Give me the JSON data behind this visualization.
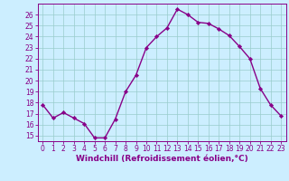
{
  "x": [
    0,
    1,
    2,
    3,
    4,
    5,
    6,
    7,
    8,
    9,
    10,
    11,
    12,
    13,
    14,
    15,
    16,
    17,
    18,
    19,
    20,
    21,
    22,
    23
  ],
  "y": [
    17.8,
    16.6,
    17.1,
    16.6,
    16.1,
    14.8,
    14.8,
    16.5,
    19.0,
    20.5,
    23.0,
    24.0,
    24.8,
    26.5,
    26.0,
    25.3,
    25.2,
    24.7,
    24.1,
    23.1,
    22.0,
    19.3,
    17.8,
    16.8
  ],
  "line_color": "#880088",
  "marker": "D",
  "marker_size": 2.2,
  "bg_color": "#cceeff",
  "grid_color": "#99cccc",
  "xlabel": "Windchill (Refroidissement éolien,°C)",
  "xlabel_color": "#880088",
  "ylim": [
    14.5,
    27.0
  ],
  "xlim": [
    -0.5,
    23.5
  ],
  "yticks": [
    15,
    16,
    17,
    18,
    19,
    20,
    21,
    22,
    23,
    24,
    25,
    26
  ],
  "xticks": [
    0,
    1,
    2,
    3,
    4,
    5,
    6,
    7,
    8,
    9,
    10,
    11,
    12,
    13,
    14,
    15,
    16,
    17,
    18,
    19,
    20,
    21,
    22,
    23
  ],
  "tick_color": "#880088",
  "tick_fontsize": 5.5,
  "xlabel_fontsize": 6.5,
  "linewidth": 1.0
}
